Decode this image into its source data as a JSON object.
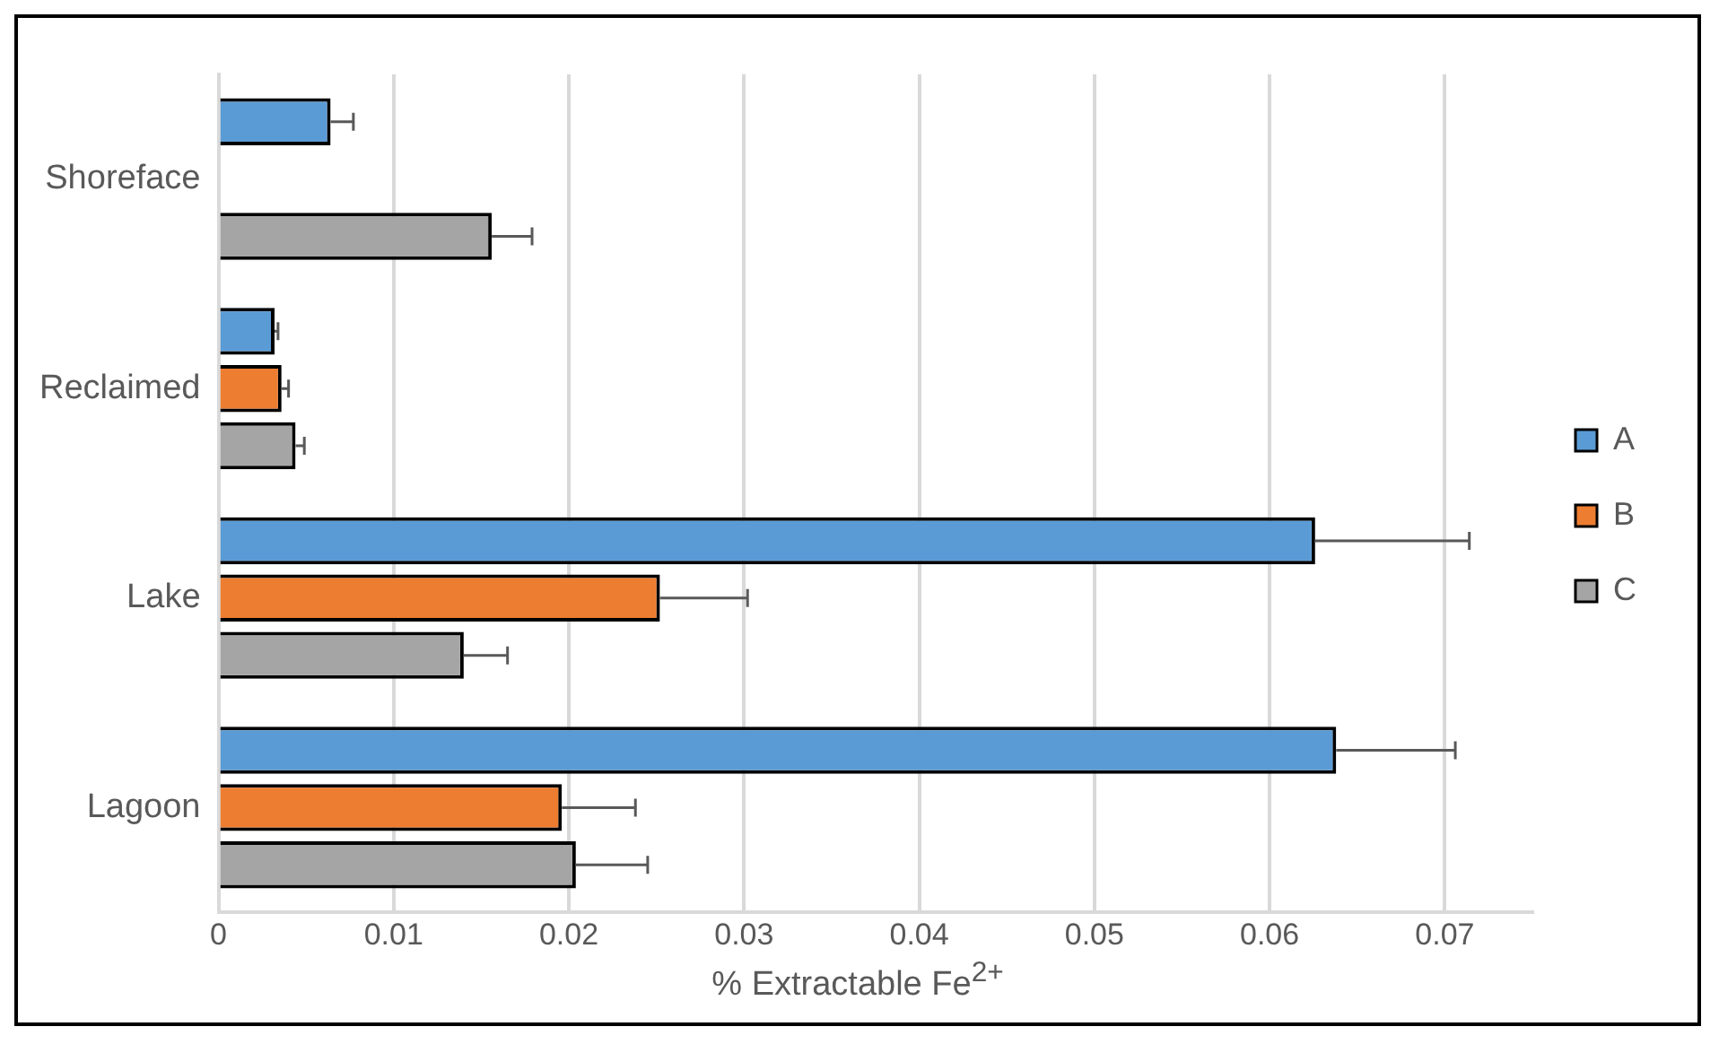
{
  "chart_data": {
    "type": "bar",
    "orientation": "horizontal",
    "xlabel": "% Extractable Fe$^{2+}$",
    "categories": [
      "Shoreface",
      "Reclaimed",
      "Lake",
      "Lagoon"
    ],
    "series": [
      {
        "name": "A",
        "color": "#5b9bd5",
        "values": [
          0.0064,
          0.0032,
          0.0626,
          0.0638
        ],
        "errors": [
          0.0013,
          0.0002,
          0.0088,
          0.0068
        ]
      },
      {
        "name": "B",
        "color": "#ed7d31",
        "values": [
          null,
          0.0036,
          0.0252,
          0.0196
        ],
        "errors": [
          null,
          0.0004,
          0.005,
          0.0042
        ]
      },
      {
        "name": "C",
        "color": "#a5a5a5",
        "values": [
          0.0156,
          0.0044,
          0.014,
          0.0204
        ],
        "errors": [
          0.0023,
          0.0005,
          0.0025,
          0.0041
        ]
      }
    ],
    "xlim": [
      0,
      0.075
    ],
    "xticks": [
      0,
      0.01,
      0.02,
      0.03,
      0.04,
      0.05,
      0.06,
      0.07
    ],
    "grid": "x",
    "legend": "right"
  }
}
